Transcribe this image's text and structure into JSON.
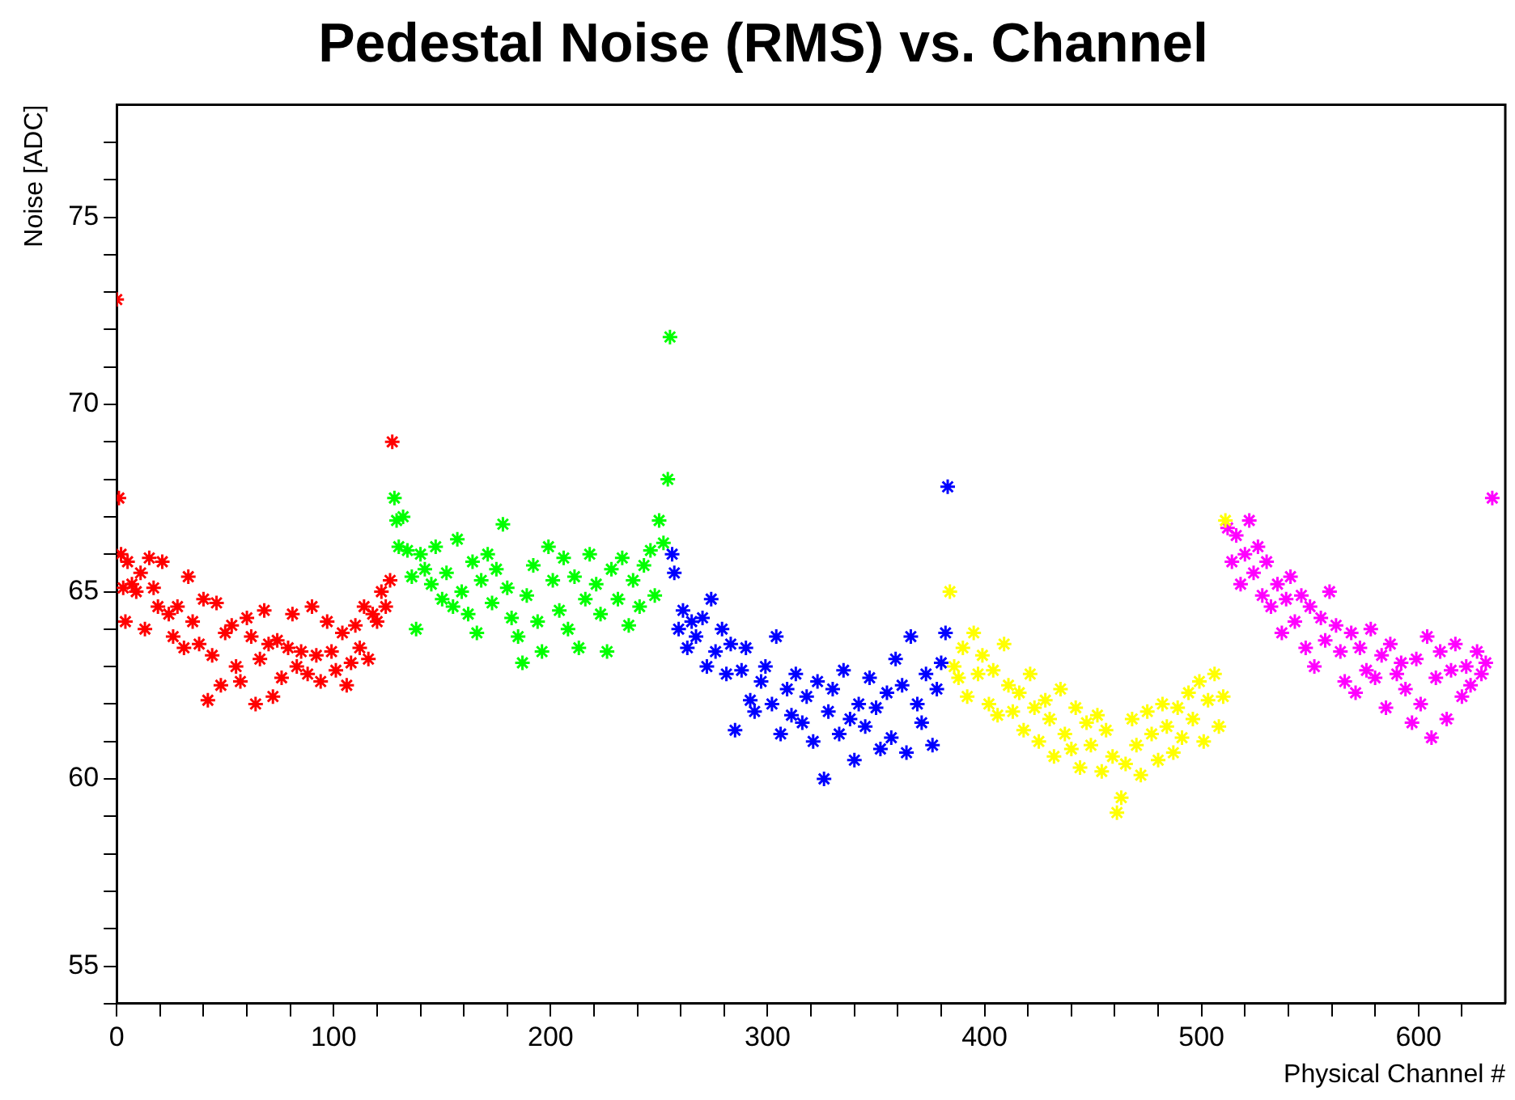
{
  "chart_data": {
    "type": "scatter",
    "title": "Pedestal Noise (RMS) vs. Channel",
    "xlabel": "Physical Channel #",
    "ylabel": "Noise [ADC]",
    "marker": "cross",
    "grid": false,
    "legend": false,
    "xlim": [
      0,
      640
    ],
    "ylim": [
      54,
      78
    ],
    "xticks": [
      0,
      {
        "value": 20,
        "label": null
      },
      {
        "value": 40,
        "label": null
      },
      {
        "value": 60,
        "label": null
      },
      {
        "value": 80,
        "label": null
      },
      100,
      {
        "value": 120,
        "label": null
      },
      {
        "value": 140,
        "label": null
      },
      {
        "value": 160,
        "label": null
      },
      {
        "value": 180,
        "label": null
      },
      200,
      {
        "value": 220,
        "label": null
      },
      {
        "value": 240,
        "label": null
      },
      {
        "value": 260,
        "label": null
      },
      {
        "value": 280,
        "label": null
      },
      300,
      {
        "value": 320,
        "label": null
      },
      {
        "value": 340,
        "label": null
      },
      {
        "value": 360,
        "label": null
      },
      {
        "value": 380,
        "label": null
      },
      400,
      {
        "value": 420,
        "label": null
      },
      {
        "value": 440,
        "label": null
      },
      {
        "value": 460,
        "label": null
      },
      {
        "value": 480,
        "label": null
      },
      500,
      {
        "value": 520,
        "label": null
      },
      {
        "value": 540,
        "label": null
      },
      {
        "value": 560,
        "label": null
      },
      {
        "value": 580,
        "label": null
      },
      600,
      {
        "value": 620,
        "label": null
      }
    ],
    "yticks": [
      {
        "value": 54,
        "label": null
      },
      55,
      {
        "value": 56,
        "label": null
      },
      {
        "value": 57,
        "label": null
      },
      {
        "value": 58,
        "label": null
      },
      {
        "value": 59,
        "label": null
      },
      60,
      {
        "value": 61,
        "label": null
      },
      {
        "value": 62,
        "label": null
      },
      {
        "value": 63,
        "label": null
      },
      {
        "value": 64,
        "label": null
      },
      65,
      {
        "value": 66,
        "label": null
      },
      {
        "value": 67,
        "label": null
      },
      {
        "value": 68,
        "label": null
      },
      {
        "value": 69,
        "label": null
      },
      70,
      {
        "value": 71,
        "label": null
      },
      {
        "value": 72,
        "label": null
      },
      {
        "value": 73,
        "label": null
      },
      {
        "value": 74,
        "label": null
      },
      75,
      {
        "value": 76,
        "label": null
      },
      {
        "value": 77,
        "label": null
      }
    ],
    "series": [
      {
        "color": "#ff0000",
        "x": [
          0,
          1,
          2,
          3,
          4,
          5,
          7,
          9,
          11,
          13,
          15,
          17,
          19,
          21,
          24,
          26,
          28,
          31,
          33,
          35,
          38,
          40,
          42,
          44,
          46,
          48,
          50,
          53,
          55,
          57,
          60,
          62,
          64,
          66,
          68,
          70,
          72,
          74,
          76,
          79,
          81,
          83,
          85,
          88,
          90,
          92,
          94,
          97,
          99,
          101,
          104,
          106,
          108,
          110,
          112,
          114,
          116,
          118,
          120,
          122,
          124,
          126,
          127
        ],
        "values": [
          72.8,
          67.5,
          66.0,
          65.1,
          64.2,
          65.8,
          65.2,
          65.0,
          65.5,
          64.0,
          65.9,
          65.1,
          64.6,
          65.8,
          64.4,
          63.8,
          64.6,
          63.5,
          65.4,
          64.2,
          63.6,
          64.8,
          62.1,
          63.3,
          64.7,
          62.5,
          63.9,
          64.1,
          63.0,
          62.6,
          64.3,
          63.8,
          62.0,
          63.2,
          64.5,
          63.6,
          62.2,
          63.7,
          62.7,
          63.5,
          64.4,
          63.0,
          63.4,
          62.8,
          64.6,
          63.3,
          62.6,
          64.2,
          63.4,
          62.9,
          63.9,
          62.5,
          63.1,
          64.1,
          63.5,
          64.6,
          63.2,
          64.4,
          64.2,
          65.0,
          64.6,
          65.3,
          69.0
        ]
      },
      {
        "color": "#00ff00",
        "x": [
          128,
          129,
          130,
          132,
          134,
          136,
          138,
          140,
          142,
          145,
          147,
          150,
          152,
          155,
          157,
          159,
          162,
          164,
          166,
          168,
          171,
          173,
          175,
          178,
          180,
          182,
          185,
          187,
          189,
          192,
          194,
          196,
          199,
          201,
          204,
          206,
          208,
          211,
          213,
          216,
          218,
          221,
          223,
          226,
          228,
          231,
          233,
          236,
          238,
          241,
          243,
          246,
          248,
          250,
          252,
          254,
          255
        ],
        "values": [
          67.5,
          66.9,
          66.2,
          67.0,
          66.1,
          65.4,
          64.0,
          66.0,
          65.6,
          65.2,
          66.2,
          64.8,
          65.5,
          64.6,
          66.4,
          65.0,
          64.4,
          65.8,
          63.9,
          65.3,
          66.0,
          64.7,
          65.6,
          66.8,
          65.1,
          64.3,
          63.8,
          63.1,
          64.9,
          65.7,
          64.2,
          63.4,
          66.2,
          65.3,
          64.5,
          65.9,
          64.0,
          65.4,
          63.5,
          64.8,
          66.0,
          65.2,
          64.4,
          63.4,
          65.6,
          64.8,
          65.9,
          64.1,
          65.3,
          64.6,
          65.7,
          66.1,
          64.9,
          66.9,
          66.3,
          68.0,
          71.8
        ]
      },
      {
        "color": "#0000ff",
        "x": [
          256,
          257,
          259,
          261,
          263,
          265,
          267,
          270,
          272,
          274,
          276,
          279,
          281,
          283,
          285,
          288,
          290,
          292,
          294,
          297,
          299,
          302,
          304,
          306,
          309,
          311,
          313,
          316,
          318,
          321,
          323,
          326,
          328,
          330,
          333,
          335,
          338,
          340,
          342,
          345,
          347,
          350,
          352,
          355,
          357,
          359,
          362,
          364,
          366,
          369,
          371,
          373,
          376,
          378,
          380,
          382,
          383
        ],
        "values": [
          66.0,
          65.5,
          64.0,
          64.5,
          63.5,
          64.2,
          63.8,
          64.3,
          63.0,
          64.8,
          63.4,
          64.0,
          62.8,
          63.6,
          61.3,
          62.9,
          63.5,
          62.1,
          61.8,
          62.6,
          63.0,
          62.0,
          63.8,
          61.2,
          62.4,
          61.7,
          62.8,
          61.5,
          62.2,
          61.0,
          62.6,
          60.0,
          61.8,
          62.4,
          61.2,
          62.9,
          61.6,
          60.5,
          62.0,
          61.4,
          62.7,
          61.9,
          60.8,
          62.3,
          61.1,
          63.2,
          62.5,
          60.7,
          63.8,
          62.0,
          61.5,
          62.8,
          60.9,
          62.4,
          63.1,
          63.9,
          67.8
        ]
      },
      {
        "color": "#ffff00",
        "x": [
          384,
          386,
          388,
          390,
          392,
          395,
          397,
          399,
          402,
          404,
          406,
          409,
          411,
          413,
          416,
          418,
          421,
          423,
          425,
          428,
          430,
          432,
          435,
          437,
          440,
          442,
          444,
          447,
          449,
          452,
          454,
          456,
          459,
          461,
          463,
          465,
          468,
          470,
          472,
          475,
          477,
          480,
          482,
          484,
          487,
          489,
          491,
          494,
          496,
          499,
          501,
          503,
          506,
          508,
          510,
          511
        ],
        "values": [
          65.0,
          63.0,
          62.7,
          63.5,
          62.2,
          63.9,
          62.8,
          63.3,
          62.0,
          62.9,
          61.7,
          63.6,
          62.5,
          61.8,
          62.3,
          61.3,
          62.8,
          61.9,
          61.0,
          62.1,
          61.6,
          60.6,
          62.4,
          61.2,
          60.8,
          61.9,
          60.3,
          61.5,
          60.9,
          61.7,
          60.2,
          61.3,
          60.6,
          59.1,
          59.5,
          60.4,
          61.6,
          60.9,
          60.1,
          61.8,
          61.2,
          60.5,
          62.0,
          61.4,
          60.7,
          61.9,
          61.1,
          62.3,
          61.6,
          62.6,
          61.0,
          62.1,
          62.8,
          61.4,
          62.2,
          66.9
        ]
      },
      {
        "color": "#ff00ff",
        "x": [
          512,
          514,
          516,
          518,
          520,
          522,
          524,
          526,
          528,
          530,
          532,
          535,
          537,
          539,
          541,
          543,
          546,
          548,
          550,
          552,
          555,
          557,
          559,
          562,
          564,
          566,
          569,
          571,
          573,
          576,
          578,
          580,
          583,
          585,
          587,
          590,
          592,
          594,
          597,
          599,
          601,
          604,
          606,
          608,
          610,
          613,
          615,
          617,
          620,
          622,
          624,
          627,
          629,
          631,
          634
        ],
        "values": [
          66.7,
          65.8,
          66.5,
          65.2,
          66.0,
          66.9,
          65.5,
          66.2,
          64.9,
          65.8,
          64.6,
          65.2,
          63.9,
          64.8,
          65.4,
          64.2,
          64.9,
          63.5,
          64.6,
          63.0,
          64.3,
          63.7,
          65.0,
          64.1,
          63.4,
          62.6,
          63.9,
          62.3,
          63.5,
          62.9,
          64.0,
          62.7,
          63.3,
          61.9,
          63.6,
          62.8,
          63.1,
          62.4,
          61.5,
          63.2,
          62.0,
          63.8,
          61.1,
          62.7,
          63.4,
          61.6,
          62.9,
          63.6,
          62.2,
          63.0,
          62.5,
          63.4,
          62.8,
          63.1,
          67.5
        ]
      }
    ]
  }
}
